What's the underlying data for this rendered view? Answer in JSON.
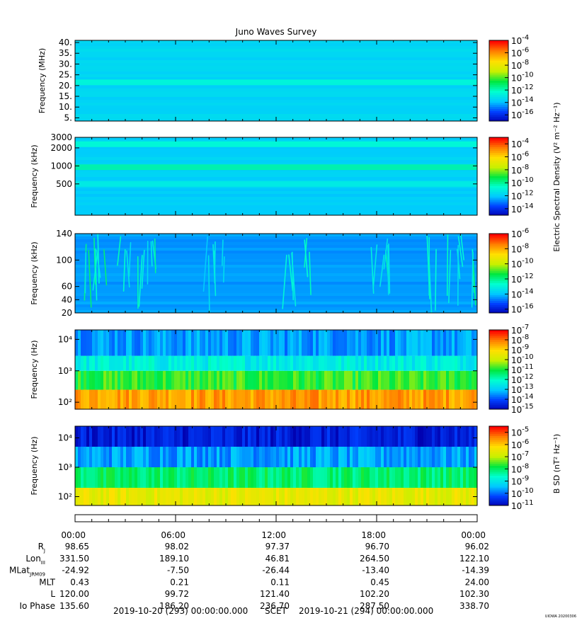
{
  "title": "Juno Waves Survey",
  "footer": {
    "start": "2019-10-20 (293) 00:00:00.000",
    "frame": "SCET",
    "end": "2019-10-21 (294) 00:00:00.000",
    "credit": "UIOWA 20200306"
  },
  "ephemeris": {
    "times": [
      "00:00",
      "06:00",
      "12:00",
      "18:00",
      "00:00"
    ],
    "rows": [
      {
        "label": "R",
        "sub": "J",
        "values": [
          "98.65",
          "98.02",
          "97.37",
          "96.70",
          "96.02"
        ]
      },
      {
        "label": "Lon",
        "sub": "III",
        "values": [
          "331.50",
          "189.10",
          "46.81",
          "264.50",
          "122.10"
        ]
      },
      {
        "label": "MLat",
        "sub": "JRM09",
        "values": [
          "-24.92",
          "-7.50",
          "-26.44",
          "-13.40",
          "-14.39"
        ]
      },
      {
        "label": "MLT",
        "sub": "",
        "values": [
          "0.43",
          "0.21",
          "0.11",
          "0.45",
          "24.00"
        ]
      },
      {
        "label": "L",
        "sub": "",
        "values": [
          "120.00",
          "99.72",
          "121.40",
          "102.20",
          "102.30"
        ]
      },
      {
        "label": "Io Phase",
        "sub": "",
        "values": [
          "135.60",
          "186.20",
          "236.70",
          "287.50",
          "338.70"
        ]
      }
    ]
  },
  "colorbar_titles": {
    "electric": "Electric Spectral Density (V² m⁻² Hz⁻¹)",
    "magnetic": "B SD (nT² Hz⁻¹)"
  },
  "colors": {
    "colormap": [
      "#0000b0",
      "#0040ff",
      "#00c8ff",
      "#00ffd0",
      "#00e840",
      "#c8f000",
      "#ffe000",
      "#ff8000",
      "#ff0000"
    ]
  },
  "chart_data": [
    {
      "type": "heatmap",
      "ylabel": "Frequency (MHz)",
      "yscale": "linear",
      "ylim": [
        3.5,
        41
      ],
      "yticks": [
        40,
        35,
        30,
        25,
        20,
        15,
        10,
        5
      ],
      "yticklabels": [
        "40.",
        "35.",
        "30.",
        "25.",
        "20.",
        "15.",
        "10.",
        "5."
      ],
      "colorbar": {
        "ticks": [
          "-4",
          "-6",
          "-8",
          "-10",
          "-12",
          "-14",
          "-16"
        ],
        "clim": [
          -17,
          -4
        ]
      },
      "features": [
        {
          "kind": "band",
          "center": 21.5,
          "level": -12.3
        },
        {
          "kind": "background",
          "level": -13.4
        }
      ]
    },
    {
      "type": "heatmap",
      "ylabel": "Frequency (kHz)",
      "yscale": "log",
      "ylim": [
        150,
        3000
      ],
      "yticks": [
        3000,
        2000,
        1000,
        500
      ],
      "yticklabels": [
        "3000",
        "2000",
        "1000",
        "500"
      ],
      "colorbar": {
        "ticks": [
          "-4",
          "-6",
          "-8",
          "-10",
          "-12",
          "-14"
        ],
        "clim": [
          -15,
          -3
        ]
      },
      "features": [
        {
          "kind": "band",
          "center": 2300,
          "level": -10.5
        },
        {
          "kind": "band",
          "center": 950,
          "level": -10
        },
        {
          "kind": "band",
          "center": 500,
          "level": -11
        },
        {
          "kind": "background",
          "level": -11.8
        }
      ]
    },
    {
      "type": "heatmap",
      "ylabel": "Frequency (kHz)",
      "yscale": "linear",
      "ylim": [
        20,
        140
      ],
      "yticks": [
        140,
        100,
        60,
        40,
        20
      ],
      "yticklabels": [
        "140",
        "100",
        "60",
        "40",
        "20"
      ],
      "colorbar": {
        "ticks": [
          "-6",
          "-8",
          "-10",
          "-12",
          "-14",
          "-16"
        ],
        "clim": [
          -16.5,
          -6
        ]
      },
      "features": [
        {
          "kind": "background",
          "level": -14.3
        },
        {
          "kind": "burst",
          "time_h": [
            0.2,
            2.1
          ],
          "level": -12.5
        },
        {
          "kind": "burst",
          "time_h": [
            2.5,
            4.8
          ],
          "level": -12.8
        },
        {
          "kind": "burst",
          "time_h": [
            7.5,
            9.0
          ],
          "level": -13.2
        },
        {
          "kind": "burst",
          "time_h": [
            12.5,
            14.0
          ],
          "level": -13.0
        },
        {
          "kind": "burst",
          "time_h": [
            17.5,
            19.0
          ],
          "level": -12.8
        },
        {
          "kind": "burst",
          "time_h": [
            21.0,
            23.8
          ],
          "level": -12.6
        }
      ]
    },
    {
      "type": "heatmap",
      "ylabel": "Frequency (Hz)",
      "yscale": "log",
      "ylim": [
        60,
        20000
      ],
      "yticks": [
        10000,
        1000,
        100
      ],
      "yticklabels": [
        "10⁴",
        "10³",
        "10²"
      ],
      "colorbar": {
        "ticks": [
          "-7",
          "-8",
          "-9",
          "-10",
          "-11",
          "-12",
          "-13",
          "-14",
          "-15"
        ],
        "clim": [
          -15,
          -7
        ]
      },
      "features": [
        {
          "kind": "layer",
          "range": [
            60,
            250
          ],
          "level": -8.3
        },
        {
          "kind": "layer",
          "range": [
            250,
            1000
          ],
          "level": -10.8
        },
        {
          "kind": "layer",
          "range": [
            1000,
            3000
          ],
          "level": -12.3
        },
        {
          "kind": "layer",
          "range": [
            3000,
            20000
          ],
          "level": -13.3
        }
      ]
    },
    {
      "type": "heatmap",
      "ylabel": "Frequency (Hz)",
      "yscale": "log",
      "ylim": [
        50,
        25000
      ],
      "yticks": [
        10000,
        1000,
        100
      ],
      "yticklabels": [
        "10⁴",
        "10³",
        "10²"
      ],
      "colorbar": {
        "ticks": [
          "-5",
          "-6",
          "-7",
          "-8",
          "-9",
          "-10",
          "-11"
        ],
        "clim": [
          -11,
          -4.5
        ]
      },
      "features": [
        {
          "kind": "layer",
          "range": [
            50,
            200
          ],
          "level": -6.5
        },
        {
          "kind": "layer",
          "range": [
            200,
            1000
          ],
          "level": -8.0
        },
        {
          "kind": "layer",
          "range": [
            1000,
            5000
          ],
          "level": -9.6
        },
        {
          "kind": "layer",
          "range": [
            5000,
            25000
          ],
          "level": -10.6
        }
      ]
    }
  ]
}
